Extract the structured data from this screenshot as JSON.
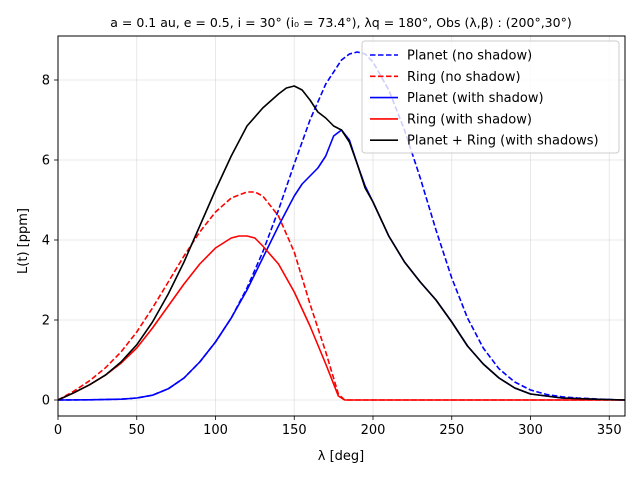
{
  "chart_data": {
    "type": "line",
    "title": "$a=0.1$ au, $e=0.5$, $i=30^\\circ$ ($i_0=73.4^\\circ$), $\\lambda_{\\rm q}=180^\\circ$, Obs $(\\lambda,\\beta)$ : $(200^\\circ,30^\\circ)$",
    "title_display": "a = 0.1 au, e = 0.5, i = 30° (i₀ = 73.4°), λq = 180°, Obs (λ,β) : (200°,30°)",
    "xlabel": "λ [deg]",
    "ylabel": "L(t) [ppm]",
    "xlim": [
      0,
      360
    ],
    "ylim": [
      -0.4,
      9.1
    ],
    "xticks": [
      "0",
      "50",
      "100",
      "150",
      "200",
      "250",
      "300",
      "350"
    ],
    "yticks": [
      "0",
      "2",
      "4",
      "6",
      "8"
    ],
    "grid": true,
    "legend_position": "top-right",
    "series": [
      {
        "name": "Planet (no shadow)",
        "color": "#0000ff",
        "dash": "dashed",
        "x": [
          0,
          20,
          40,
          50,
          60,
          70,
          80,
          90,
          100,
          110,
          120,
          130,
          140,
          150,
          160,
          170,
          180,
          185,
          190,
          195,
          200,
          210,
          220,
          230,
          240,
          250,
          260,
          270,
          280,
          290,
          300,
          310,
          320,
          330,
          340,
          350,
          360
        ],
        "y": [
          0,
          0.005,
          0.02,
          0.05,
          0.12,
          0.28,
          0.55,
          0.95,
          1.45,
          2.05,
          2.8,
          3.7,
          4.75,
          5.9,
          7.0,
          7.9,
          8.5,
          8.65,
          8.7,
          8.65,
          8.45,
          7.75,
          6.75,
          5.55,
          4.25,
          3.05,
          2.05,
          1.3,
          0.78,
          0.45,
          0.25,
          0.14,
          0.08,
          0.05,
          0.03,
          0.01,
          0
        ]
      },
      {
        "name": "Ring (no shadow)",
        "color": "#ff0000",
        "dash": "dashed",
        "x": [
          0,
          10,
          20,
          30,
          40,
          50,
          60,
          70,
          80,
          90,
          100,
          110,
          120,
          125,
          130,
          140,
          150,
          160,
          170,
          178,
          182,
          190,
          200,
          250,
          300,
          360
        ],
        "y": [
          0,
          0.22,
          0.48,
          0.8,
          1.2,
          1.7,
          2.3,
          2.95,
          3.6,
          4.2,
          4.7,
          5.05,
          5.2,
          5.2,
          5.1,
          4.6,
          3.7,
          2.4,
          1.2,
          0.15,
          0,
          0,
          0,
          0,
          0,
          0
        ]
      },
      {
        "name": "Planet (with shadow)",
        "color": "#0000ff",
        "dash": "solid",
        "x": [
          0,
          20,
          40,
          50,
          60,
          70,
          80,
          90,
          100,
          110,
          120,
          130,
          140,
          150,
          155,
          160,
          165,
          170,
          175,
          180,
          185,
          190,
          195,
          200,
          210,
          220,
          230,
          240,
          250,
          260,
          270,
          280,
          290,
          300,
          320,
          340,
          360
        ],
        "y": [
          0,
          0.005,
          0.02,
          0.05,
          0.12,
          0.28,
          0.55,
          0.95,
          1.45,
          2.05,
          2.75,
          3.55,
          4.35,
          5.1,
          5.4,
          5.6,
          5.8,
          6.1,
          6.6,
          6.75,
          6.5,
          5.9,
          5.35,
          4.95,
          4.1,
          3.45,
          2.95,
          2.5,
          1.95,
          1.35,
          0.9,
          0.55,
          0.3,
          0.15,
          0.05,
          0.02,
          0
        ]
      },
      {
        "name": "Ring (with shadow)",
        "color": "#ff0000",
        "dash": "solid",
        "x": [
          0,
          10,
          20,
          30,
          40,
          50,
          60,
          70,
          80,
          90,
          100,
          110,
          115,
          120,
          125,
          130,
          140,
          150,
          160,
          170,
          178,
          182,
          190,
          200,
          250,
          300,
          360
        ],
        "y": [
          0,
          0.18,
          0.38,
          0.62,
          0.92,
          1.3,
          1.8,
          2.35,
          2.9,
          3.4,
          3.8,
          4.05,
          4.1,
          4.1,
          4.05,
          3.85,
          3.4,
          2.7,
          1.85,
          0.9,
          0.1,
          0,
          0,
          0,
          0,
          0,
          0
        ]
      },
      {
        "name": "Planet + Ring (with shadows)",
        "color": "#000000",
        "dash": "solid",
        "x": [
          0,
          10,
          20,
          30,
          40,
          50,
          60,
          70,
          80,
          90,
          100,
          110,
          120,
          130,
          140,
          145,
          150,
          155,
          160,
          165,
          170,
          175,
          180,
          185,
          190,
          195,
          200,
          210,
          220,
          230,
          240,
          250,
          260,
          270,
          280,
          290,
          300,
          320,
          340,
          360
        ],
        "y": [
          0,
          0.18,
          0.38,
          0.62,
          0.95,
          1.38,
          1.95,
          2.65,
          3.45,
          4.35,
          5.25,
          6.1,
          6.85,
          7.3,
          7.65,
          7.8,
          7.85,
          7.75,
          7.5,
          7.2,
          7.05,
          6.85,
          6.75,
          6.45,
          5.9,
          5.3,
          4.95,
          4.1,
          3.45,
          2.95,
          2.5,
          1.95,
          1.35,
          0.9,
          0.55,
          0.3,
          0.15,
          0.05,
          0.02,
          0
        ]
      }
    ]
  }
}
